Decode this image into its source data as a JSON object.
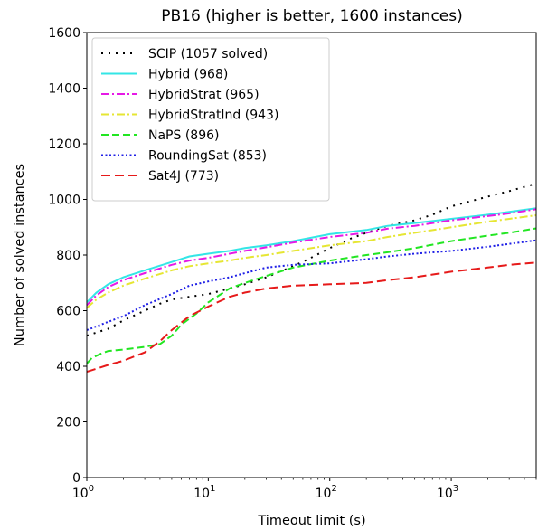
{
  "chart_data": {
    "type": "line",
    "title": "PB16 (higher is better, 1600 instances)",
    "xlabel": "Timeout limit (s)",
    "ylabel": "Number of solved instances",
    "xscale": "log",
    "xlim": [
      1,
      5000
    ],
    "ylim": [
      0,
      1600
    ],
    "xticks": [
      1,
      10,
      100,
      1000
    ],
    "xtick_labels": [
      {
        "base": "10",
        "exp": "0"
      },
      {
        "base": "10",
        "exp": "1"
      },
      {
        "base": "10",
        "exp": "2"
      },
      {
        "base": "10",
        "exp": "3"
      }
    ],
    "yticks": [
      0,
      200,
      400,
      600,
      800,
      1000,
      1200,
      1400,
      1600
    ],
    "ytick_labels": [
      "0",
      "200",
      "400",
      "600",
      "800",
      "1000",
      "1200",
      "1400",
      "1600"
    ],
    "grid": false,
    "legend_position": "top-left",
    "series": [
      {
        "name": "SCIP (1057 solved)",
        "color": "#000000",
        "style": "dotted-sparse",
        "x": [
          1,
          1.5,
          2,
          3,
          4,
          5,
          7,
          10,
          15,
          20,
          30,
          50,
          70,
          100,
          150,
          200,
          300,
          500,
          700,
          1000,
          2000,
          3000,
          5000
        ],
        "y": [
          510,
          535,
          565,
          600,
          625,
          640,
          650,
          660,
          680,
          695,
          720,
          760,
          790,
          825,
          860,
          880,
          905,
          925,
          945,
          975,
          1010,
          1030,
          1057
        ]
      },
      {
        "name": "Hybrid (968)",
        "color": "#33e6e6",
        "style": "solid",
        "x": [
          1,
          1.2,
          1.5,
          2,
          3,
          5,
          7,
          10,
          15,
          20,
          30,
          50,
          100,
          200,
          300,
          500,
          1000,
          2000,
          3000,
          5000
        ],
        "y": [
          630,
          665,
          695,
          720,
          745,
          775,
          795,
          805,
          815,
          825,
          835,
          850,
          875,
          890,
          905,
          915,
          930,
          945,
          955,
          968
        ]
      },
      {
        "name": "HybridStrat (965)",
        "color": "#e619e6",
        "style": "dashdot",
        "x": [
          1,
          1.2,
          1.5,
          2,
          3,
          5,
          7,
          10,
          15,
          20,
          30,
          50,
          100,
          200,
          300,
          500,
          1000,
          2000,
          3000,
          5000
        ],
        "y": [
          620,
          655,
          685,
          710,
          735,
          765,
          780,
          790,
          805,
          815,
          828,
          845,
          865,
          880,
          895,
          905,
          925,
          940,
          950,
          965
        ]
      },
      {
        "name": "HybridStratInd (943)",
        "color": "#e6e633",
        "style": "dashdot",
        "x": [
          1,
          1.2,
          1.5,
          2,
          3,
          5,
          7,
          10,
          15,
          20,
          30,
          50,
          100,
          200,
          300,
          500,
          1000,
          2000,
          3000,
          5000
        ],
        "y": [
          610,
          640,
          665,
          690,
          715,
          745,
          760,
          770,
          780,
          790,
          800,
          815,
          835,
          850,
          865,
          880,
          900,
          920,
          930,
          943
        ]
      },
      {
        "name": "NaPS (896)",
        "color": "#22e622",
        "style": "dashed",
        "x": [
          1,
          1.1,
          1.3,
          1.5,
          2,
          3,
          4,
          5,
          6,
          8,
          10,
          15,
          20,
          30,
          50,
          100,
          200,
          300,
          500,
          1000,
          2000,
          3000,
          5000
        ],
        "y": [
          410,
          430,
          445,
          455,
          460,
          470,
          480,
          510,
          550,
          590,
          630,
          680,
          700,
          725,
          755,
          780,
          800,
          810,
          825,
          850,
          870,
          880,
          896
        ]
      },
      {
        "name": "RoundingSat (853)",
        "color": "#1f1fe6",
        "style": "dotted",
        "x": [
          1,
          1.5,
          2,
          3,
          5,
          7,
          10,
          15,
          20,
          30,
          50,
          100,
          200,
          300,
          500,
          1000,
          2000,
          3000,
          5000
        ],
        "y": [
          530,
          560,
          580,
          620,
          660,
          690,
          705,
          720,
          735,
          755,
          765,
          770,
          785,
          795,
          805,
          815,
          830,
          840,
          853
        ]
      },
      {
        "name": "Sat4J (773)",
        "color": "#e61a1a",
        "style": "longdash",
        "x": [
          1,
          1.5,
          2,
          3,
          4,
          5,
          7,
          10,
          15,
          20,
          30,
          50,
          100,
          200,
          300,
          500,
          1000,
          2000,
          3000,
          5000
        ],
        "y": [
          380,
          405,
          420,
          450,
          490,
          530,
          580,
          615,
          650,
          665,
          680,
          690,
          695,
          700,
          710,
          720,
          740,
          755,
          765,
          773
        ]
      }
    ]
  }
}
